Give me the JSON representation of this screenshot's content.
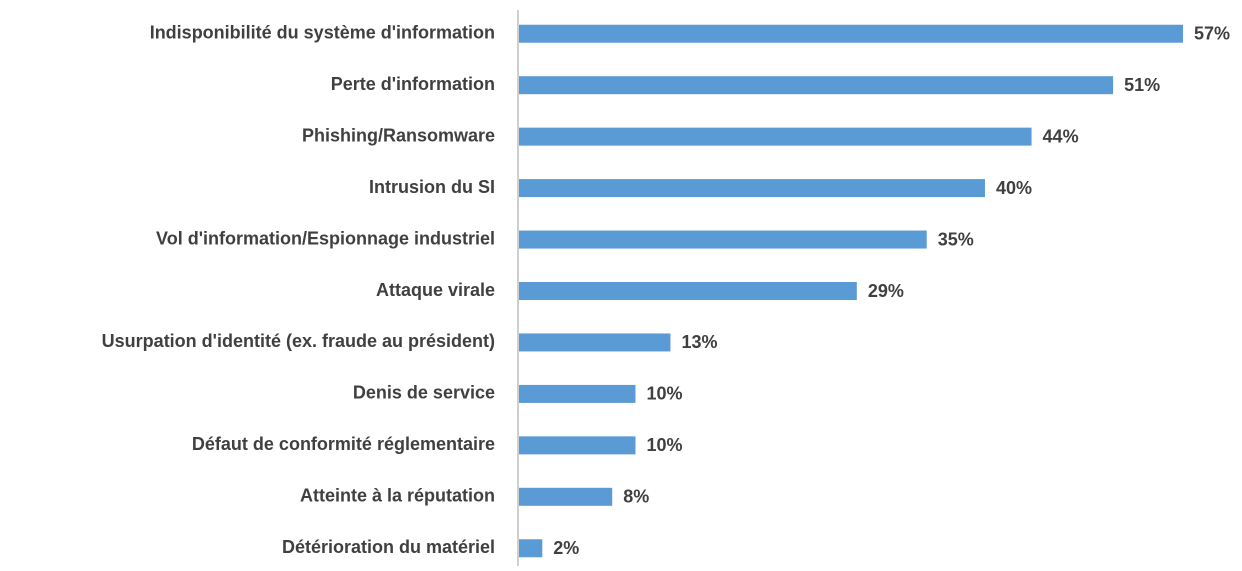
{
  "chart_data": {
    "type": "bar",
    "orientation": "horizontal",
    "categories": [
      "Indisponibilité du système d'information",
      "Perte d'information",
      "Phishing/Ransomware",
      "Intrusion du SI",
      "Vol d'information/Espionnage industriel",
      "Attaque virale",
      "Usurpation d'identité (ex. fraude au président)",
      "Denis de service",
      "Défaut de conformité réglementaire",
      "Atteinte à la réputation",
      "Détérioration du matériel"
    ],
    "values": [
      57,
      51,
      44,
      40,
      35,
      29,
      13,
      10,
      10,
      8,
      2
    ],
    "value_labels": [
      "57%",
      "51%",
      "44%",
      "40%",
      "35%",
      "29%",
      "13%",
      "10%",
      "10%",
      "8%",
      "2%"
    ],
    "color": "#5b9bd5"
  }
}
